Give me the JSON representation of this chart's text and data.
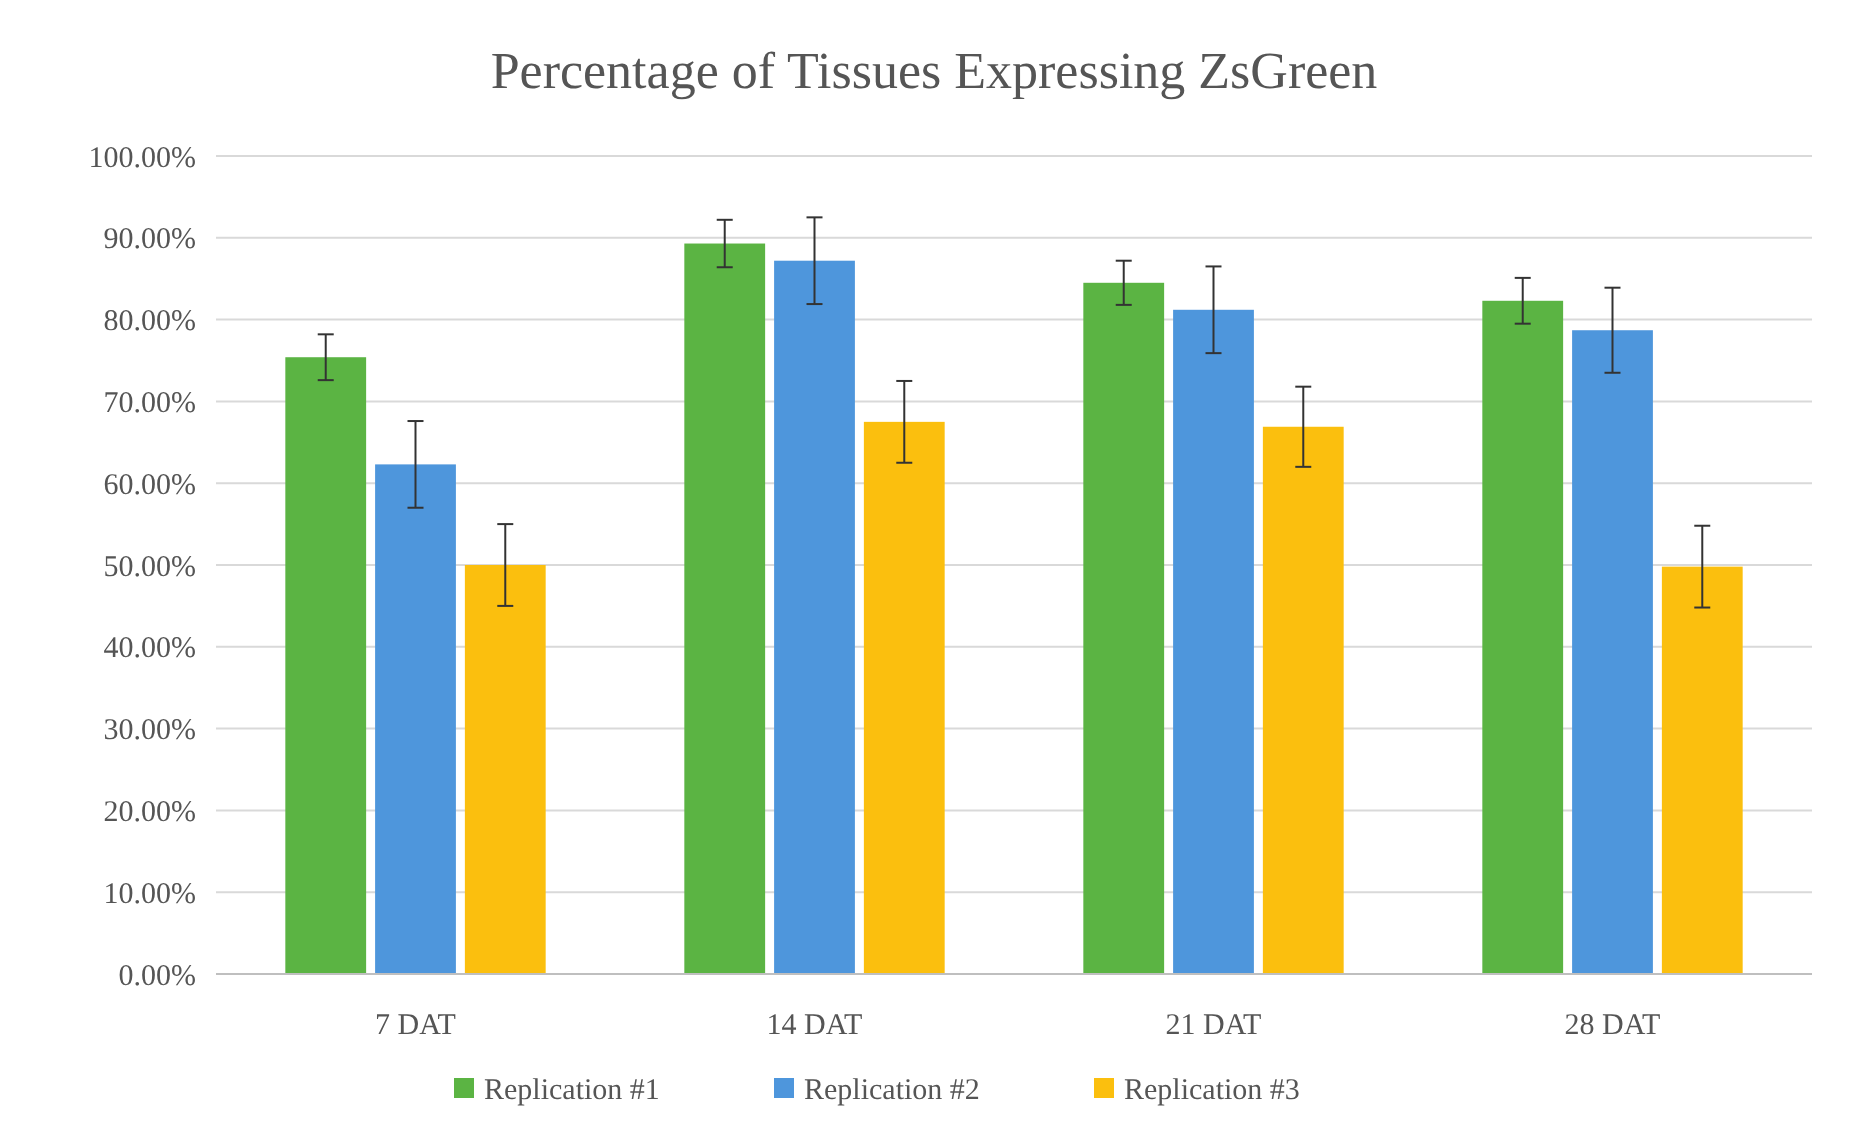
{
  "chart_data": {
    "type": "bar",
    "title": "Percentage of Tissues Expressing ZsGreen",
    "categories": [
      "7 DAT",
      "14 DAT",
      "21 DAT",
      "28 DAT"
    ],
    "series": [
      {
        "name": "Replication #1",
        "color": "#5bb443",
        "values": [
          75.4,
          89.3,
          84.5,
          82.3
        ],
        "errors": [
          2.8,
          2.9,
          2.7,
          2.8
        ]
      },
      {
        "name": "Replication #2",
        "color": "#4e96dc",
        "values": [
          62.3,
          87.2,
          81.2,
          78.7
        ],
        "errors": [
          5.3,
          5.3,
          5.3,
          5.2
        ]
      },
      {
        "name": "Replication #3",
        "color": "#fbbf0e",
        "values": [
          50.0,
          67.5,
          66.9,
          49.8
        ],
        "errors": [
          5,
          5,
          4.9,
          5
        ]
      }
    ],
    "ylim": [
      0,
      100
    ],
    "yticks": [
      {
        "value": 0,
        "label": "0.00%"
      },
      {
        "value": 10,
        "label": "10.00%"
      },
      {
        "value": 20,
        "label": "20.00%"
      },
      {
        "value": 30,
        "label": "30.00%"
      },
      {
        "value": 40,
        "label": "40.00%"
      },
      {
        "value": 50,
        "label": "50.00%"
      },
      {
        "value": 60,
        "label": "60.00%"
      },
      {
        "value": 70,
        "label": "70.00%"
      },
      {
        "value": 80,
        "label": "80.00%"
      },
      {
        "value": 90,
        "label": "90.00%"
      },
      {
        "value": 100,
        "label": "100.00%"
      }
    ],
    "grid": "y",
    "legend": "bottom"
  }
}
